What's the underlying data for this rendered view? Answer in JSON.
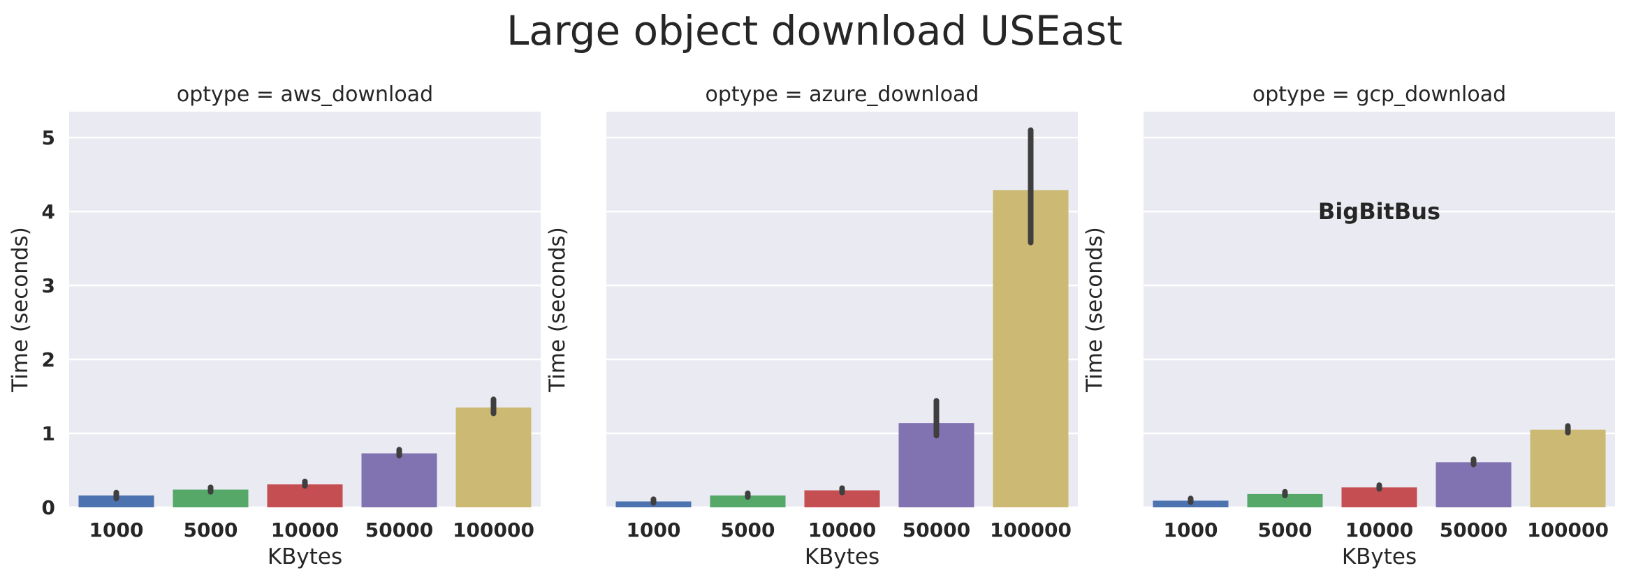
{
  "figure": {
    "title": "Large object download USEast"
  },
  "chart_data": [
    {
      "type": "bar",
      "title": "optype = aws_download",
      "xlabel": "KBytes",
      "ylabel": "Time (seconds)",
      "ylim": [
        0,
        5.35
      ],
      "yticks": [
        "0",
        "1",
        "2",
        "3",
        "4",
        "5"
      ],
      "grid": true,
      "categories": [
        "1000",
        "5000",
        "10000",
        "50000",
        "100000"
      ],
      "values": [
        0.16,
        0.24,
        0.31,
        0.73,
        1.35
      ],
      "err_low": [
        0.12,
        0.21,
        0.29,
        0.7,
        1.27
      ],
      "err_high": [
        0.2,
        0.27,
        0.35,
        0.78,
        1.46
      ],
      "colors": [
        "#4c72b0",
        "#55a868",
        "#c44e52",
        "#8172b2",
        "#ccb974"
      ]
    },
    {
      "type": "bar",
      "title": "optype = azure_download",
      "xlabel": "KBytes",
      "ylabel": "Time (seconds)",
      "ylim": [
        0,
        5.35
      ],
      "yticks": [],
      "grid": true,
      "categories": [
        "1000",
        "5000",
        "10000",
        "50000",
        "100000"
      ],
      "values": [
        0.08,
        0.16,
        0.23,
        1.14,
        4.29
      ],
      "err_low": [
        0.06,
        0.14,
        0.2,
        0.97,
        3.58
      ],
      "err_high": [
        0.11,
        0.19,
        0.26,
        1.44,
        5.1
      ],
      "colors": [
        "#4c72b0",
        "#55a868",
        "#c44e52",
        "#8172b2",
        "#ccb974"
      ]
    },
    {
      "type": "bar",
      "title": "optype = gcp_download",
      "xlabel": "KBytes",
      "ylabel": "Time (seconds)",
      "ylim": [
        0,
        5.35
      ],
      "yticks": [],
      "grid": true,
      "categories": [
        "1000",
        "5000",
        "10000",
        "50000",
        "100000"
      ],
      "values": [
        0.09,
        0.18,
        0.27,
        0.61,
        1.05
      ],
      "err_low": [
        0.07,
        0.16,
        0.25,
        0.58,
        1.01
      ],
      "err_high": [
        0.12,
        0.21,
        0.3,
        0.65,
        1.1
      ],
      "colors": [
        "#4c72b0",
        "#55a868",
        "#c44e52",
        "#8172b2",
        "#ccb974"
      ],
      "annotation": {
        "text": "BigBitBus",
        "x": "10000",
        "y": 4.0
      }
    }
  ]
}
